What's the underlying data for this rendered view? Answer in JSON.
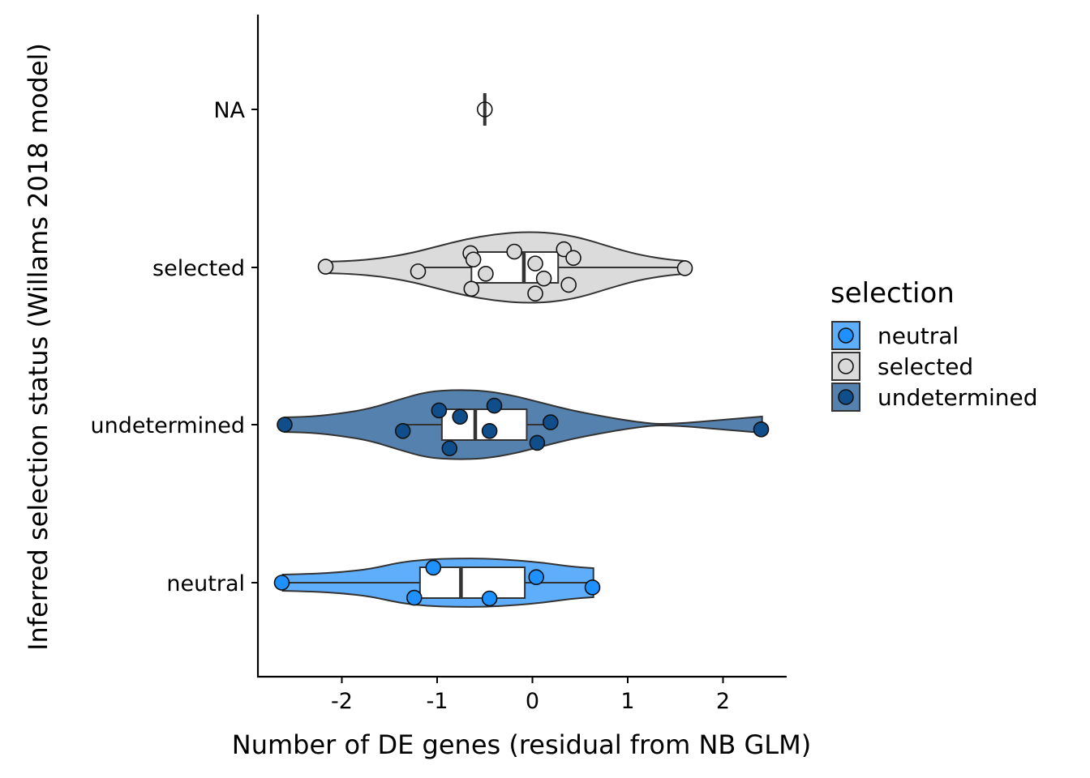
{
  "chart_data": {
    "type": "violin",
    "orientation": "horizontal",
    "title": "",
    "xlabel": "Number of DE genes (residual from NB GLM)",
    "ylabel": "Inferred selection status (Willams 2018 model)",
    "xlim": [
      -2.85,
      2.65
    ],
    "x_ticks": [
      -2,
      -1,
      0,
      1,
      2
    ],
    "x_tick_labels": [
      "-2",
      "-1",
      "0",
      "1",
      "2"
    ],
    "categories": [
      "neutral",
      "undetermined",
      "selected",
      "NA"
    ],
    "grid": false,
    "legend": {
      "title": "selection",
      "position": "right",
      "entries": [
        {
          "label": "neutral",
          "color": "#1E90FF",
          "fill": "#5EAEFC"
        },
        {
          "label": "selected",
          "color": "#D9D9D9",
          "fill": "#DBDBDB"
        },
        {
          "label": "undetermined",
          "color": "#104E8B",
          "fill": "#5581AE"
        }
      ]
    },
    "series": [
      {
        "category": "neutral",
        "point_color": "#1E90FF",
        "violin_fill": "#5EAEFC",
        "range": [
          -2.62,
          0.64
        ],
        "box": {
          "q1": -1.18,
          "median": -0.75,
          "q3": -0.08,
          "whisker_low": -2.62,
          "whisker_high": 0.64
        },
        "points": [
          {
            "x": -2.63,
            "offset": 0.0
          },
          {
            "x": -1.04,
            "offset": 0.19
          },
          {
            "x": 0.04,
            "offset": 0.07
          },
          {
            "x": 0.63,
            "offset": -0.06
          },
          {
            "x": -1.24,
            "offset": -0.19
          },
          {
            "x": -0.45,
            "offset": -0.2
          }
        ],
        "density": [
          [
            -2.62,
            0.1
          ],
          [
            -2.3,
            0.11
          ],
          [
            -2.0,
            0.13
          ],
          [
            -1.7,
            0.17
          ],
          [
            -1.4,
            0.25
          ],
          [
            -1.1,
            0.29
          ],
          [
            -0.8,
            0.3
          ],
          [
            -0.5,
            0.3
          ],
          [
            -0.2,
            0.28
          ],
          [
            0.1,
            0.25
          ],
          [
            0.4,
            0.2
          ],
          [
            0.64,
            0.18
          ]
        ]
      },
      {
        "category": "undetermined",
        "point_color": "#104E8B",
        "violin_fill": "#5581AE",
        "range": [
          -2.6,
          2.41
        ],
        "box": {
          "q1": -0.95,
          "median": -0.6,
          "q3": -0.06,
          "whisker_low": -1.35,
          "whisker_high": 0.2
        },
        "points": [
          {
            "x": -2.6,
            "offset": 0.0
          },
          {
            "x": -0.98,
            "offset": 0.18
          },
          {
            "x": -0.76,
            "offset": 0.1
          },
          {
            "x": -0.4,
            "offset": 0.24
          },
          {
            "x": 0.19,
            "offset": 0.03
          },
          {
            "x": -1.36,
            "offset": -0.08
          },
          {
            "x": -0.45,
            "offset": -0.08
          },
          {
            "x": 0.05,
            "offset": -0.23
          },
          {
            "x": -0.87,
            "offset": -0.3
          },
          {
            "x": 2.4,
            "offset": -0.06
          }
        ],
        "density": [
          [
            -2.6,
            0.09
          ],
          [
            -2.3,
            0.1
          ],
          [
            -2.0,
            0.14
          ],
          [
            -1.7,
            0.2
          ],
          [
            -1.4,
            0.31
          ],
          [
            -1.1,
            0.41
          ],
          [
            -0.8,
            0.43
          ],
          [
            -0.5,
            0.42
          ],
          [
            -0.2,
            0.36
          ],
          [
            0.1,
            0.27
          ],
          [
            0.4,
            0.18
          ],
          [
            0.7,
            0.11
          ],
          [
            1.0,
            0.05
          ],
          [
            1.2,
            0.02
          ],
          [
            1.3,
            0.01
          ],
          [
            1.4,
            0.01
          ],
          [
            1.6,
            0.02
          ],
          [
            1.9,
            0.05
          ],
          [
            2.2,
            0.08
          ],
          [
            2.41,
            0.1
          ]
        ]
      },
      {
        "category": "selected",
        "point_color": "#D9D9D9",
        "violin_fill": "#DBDBDB",
        "range": [
          -2.17,
          1.6
        ],
        "box": {
          "q1": -0.64,
          "median": -0.09,
          "q3": 0.27,
          "whisker_low": -1.2,
          "whisker_high": 1.6
        },
        "points": [
          {
            "x": -2.17,
            "offset": 0.01
          },
          {
            "x": -1.2,
            "offset": -0.05
          },
          {
            "x": -0.65,
            "offset": 0.18
          },
          {
            "x": -0.62,
            "offset": 0.1
          },
          {
            "x": -0.19,
            "offset": 0.2
          },
          {
            "x": 0.03,
            "offset": 0.05
          },
          {
            "x": 0.33,
            "offset": 0.23
          },
          {
            "x": 0.43,
            "offset": 0.12
          },
          {
            "x": -0.49,
            "offset": -0.08
          },
          {
            "x": 0.12,
            "offset": -0.14
          },
          {
            "x": 0.38,
            "offset": -0.22
          },
          {
            "x": -0.64,
            "offset": -0.27
          },
          {
            "x": 0.03,
            "offset": -0.33
          },
          {
            "x": 1.6,
            "offset": -0.01
          }
        ],
        "density": [
          [
            -2.17,
            0.07
          ],
          [
            -1.9,
            0.08
          ],
          [
            -1.6,
            0.11
          ],
          [
            -1.3,
            0.17
          ],
          [
            -1.0,
            0.26
          ],
          [
            -0.7,
            0.35
          ],
          [
            -0.4,
            0.41
          ],
          [
            -0.1,
            0.44
          ],
          [
            0.2,
            0.43
          ],
          [
            0.5,
            0.37
          ],
          [
            0.8,
            0.26
          ],
          [
            1.1,
            0.16
          ],
          [
            1.4,
            0.1
          ],
          [
            1.6,
            0.08
          ]
        ]
      },
      {
        "category": "NA",
        "point_color": "#FFFFFF",
        "violin_fill": "#FFFFFF",
        "range": [
          -0.5,
          -0.5
        ],
        "box": {
          "q1": -0.5,
          "median": -0.5,
          "q3": -0.5,
          "whisker_low": -0.5,
          "whisker_high": -0.5
        },
        "points": [
          {
            "x": -0.5,
            "offset": 0.0
          }
        ],
        "density": []
      }
    ]
  }
}
